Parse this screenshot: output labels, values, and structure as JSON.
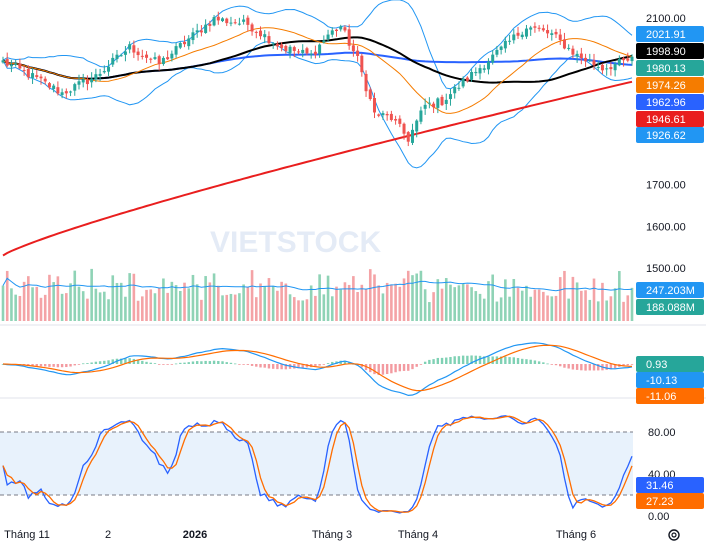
{
  "colors": {
    "up": "#26a69a",
    "down": "#ef5350",
    "ma_short": "#f57c00",
    "ma_mid": "#000000",
    "ma_long_blue": "#2962ff",
    "ma_200": "#e91e1e",
    "bollinger": "#2196f3",
    "macd": "#2196f3",
    "signal": "#ff6d00",
    "stoch_k": "#2962ff",
    "stoch_d": "#ff6d00",
    "band_fill": "#e8f2fc"
  },
  "watermark": "VIETSTOCK",
  "chart_data": [
    {
      "type": "candlestick",
      "panel": "price",
      "y_ticks": [
        "2100.00",
        "1700.00",
        "1600.00",
        "1500.00"
      ],
      "ylim": [
        1470,
        2110
      ],
      "x_labels": [
        "Tháng 11",
        "2",
        "2026",
        "Tháng 3",
        "Tháng 4",
        "Tháng 6"
      ],
      "bars_count": 150,
      "anchors": [
        [
          0,
          1995
        ],
        [
          6,
          1965
        ],
        [
          14,
          1920
        ],
        [
          22,
          1960
        ],
        [
          30,
          2030
        ],
        [
          37,
          1990
        ],
        [
          44,
          2050
        ],
        [
          50,
          2098
        ],
        [
          58,
          2085
        ],
        [
          66,
          2030
        ],
        [
          73,
          2010
        ],
        [
          77,
          2060
        ],
        [
          80,
          2080
        ],
        [
          84,
          2000
        ],
        [
          88,
          1870
        ],
        [
          92,
          1860
        ],
        [
          96,
          1810
        ],
        [
          100,
          1890
        ],
        [
          104,
          1900
        ],
        [
          110,
          1955
        ],
        [
          118,
          2025
        ],
        [
          124,
          2080
        ],
        [
          130,
          2060
        ],
        [
          136,
          2010
        ],
        [
          142,
          1980
        ],
        [
          149,
          2000
        ]
      ],
      "last_values": {
        "bb_upper": "2021.91",
        "ma_mid": "1998.90",
        "close": "1980.13",
        "ma_short": "1974.26",
        "ma_long": "1962.96",
        "ma_200": "1946.61",
        "bb_lower": "1926.62"
      }
    },
    {
      "type": "bar",
      "panel": "volume",
      "last_values": {
        "volume_ma": "247.203M",
        "volume": "188.088M"
      }
    },
    {
      "type": "macd",
      "panel": "macd",
      "last_values": {
        "histogram": "0.93",
        "macd": "-10.13",
        "signal": "-11.06"
      }
    },
    {
      "type": "line",
      "panel": "stochastic",
      "y_ticks": [
        "80.00",
        "40.00",
        "0.00"
      ],
      "ylim": [
        0,
        100
      ],
      "band": [
        20,
        80
      ],
      "last_values": {
        "k": "31.46",
        "d": "27.23"
      }
    }
  ]
}
